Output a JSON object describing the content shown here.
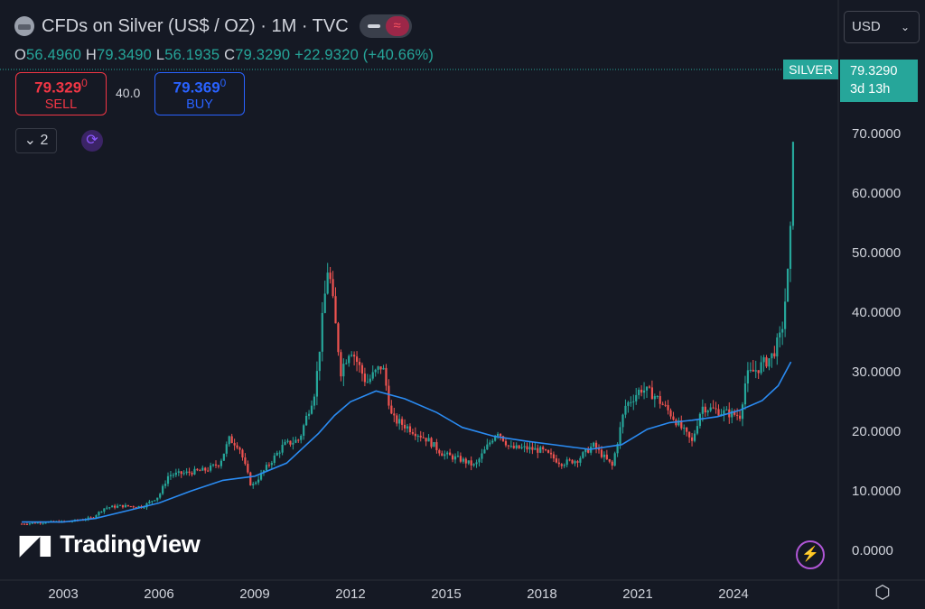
{
  "header": {
    "title": "CFDs on Silver (US$ / OZ) · 1M · TVC",
    "ohlc": {
      "o_label": "O",
      "o": "56.4960",
      "h_label": "H",
      "h": "79.3490",
      "l_label": "L",
      "l": "56.1935",
      "c_label": "C",
      "c": "79.3290",
      "change": "+22.9320 (+40.66%)"
    },
    "toggle_icon": "waves-icon",
    "symbol_icon": "silver-bar-icon"
  },
  "trade": {
    "sell_price": "79.329",
    "sell_price_small": "0",
    "sell_label": "SELL",
    "spread": "40.0",
    "buy_price": "79.369",
    "buy_price_small": "0",
    "buy_label": "BUY"
  },
  "indicators": {
    "collapse_label": "2",
    "collapse_icon": "chevron-down-icon",
    "sync_icon": "sync-icon"
  },
  "currency": {
    "value": "USD",
    "icon": "chevron-down-icon"
  },
  "price_tag": {
    "symbol": "SILVER",
    "price": "79.3290",
    "countdown": "3d 13h"
  },
  "logo_text": "TradingView",
  "colors": {
    "bg": "#151924",
    "up": "#26a69a",
    "down": "#ef5350",
    "ma": "#2a8bf2",
    "text": "#d1d4dc"
  },
  "chart_data": {
    "type": "candlestick",
    "ylim": [
      -2,
      82
    ],
    "y_ticks": [
      "0.0000",
      "10.0000",
      "20.0000",
      "30.0000",
      "40.0000",
      "50.0000",
      "60.0000",
      "70.0000"
    ],
    "x_ticks": [
      "2003",
      "2006",
      "2009",
      "2012",
      "2015",
      "2018",
      "2021",
      "2024"
    ],
    "series": [
      {
        "kind": "close_path",
        "points": [
          [
            2001.7,
            4.3
          ],
          [
            2002.5,
            4.6
          ],
          [
            2003.2,
            4.7
          ],
          [
            2003.9,
            5.3
          ],
          [
            2004.3,
            7.0
          ],
          [
            2004.8,
            7.3
          ],
          [
            2005.5,
            7.2
          ],
          [
            2006.0,
            9.0
          ],
          [
            2006.3,
            12.5
          ],
          [
            2006.8,
            12.8
          ],
          [
            2007.5,
            13.4
          ],
          [
            2007.9,
            14.5
          ],
          [
            2008.2,
            18.5
          ],
          [
            2008.5,
            17.5
          ],
          [
            2008.9,
            10.5
          ],
          [
            2009.4,
            14.0
          ],
          [
            2009.9,
            17.5
          ],
          [
            2010.4,
            18.5
          ],
          [
            2010.9,
            27.0
          ],
          [
            2011.3,
            48.0
          ],
          [
            2011.7,
            30.0
          ],
          [
            2012.0,
            34.0
          ],
          [
            2012.5,
            28.0
          ],
          [
            2013.0,
            31.0
          ],
          [
            2013.3,
            22.0
          ],
          [
            2013.8,
            20.5
          ],
          [
            2014.4,
            18.5
          ],
          [
            2014.9,
            16.0
          ],
          [
            2015.5,
            15.0
          ],
          [
            2015.9,
            14.0
          ],
          [
            2016.6,
            20.0
          ],
          [
            2017.0,
            17.0
          ],
          [
            2017.5,
            17.0
          ],
          [
            2018.0,
            16.6
          ],
          [
            2018.6,
            14.5
          ],
          [
            2019.1,
            15.0
          ],
          [
            2019.6,
            17.5
          ],
          [
            2020.2,
            14.0
          ],
          [
            2020.6,
            24.0
          ],
          [
            2021.1,
            27.0
          ],
          [
            2021.5,
            26.0
          ],
          [
            2022.0,
            23.0
          ],
          [
            2022.7,
            18.0
          ],
          [
            2023.0,
            24.0
          ],
          [
            2023.7,
            23.0
          ],
          [
            2024.2,
            22.5
          ],
          [
            2024.4,
            29.0
          ],
          [
            2024.9,
            31.0
          ],
          [
            2025.2,
            32.5
          ],
          [
            2025.5,
            36.0
          ],
          [
            2025.7,
            46.0
          ],
          [
            2025.83,
            56.5
          ],
          [
            2025.9,
            79.3
          ]
        ],
        "high": 79.349,
        "low_all": 4.2
      },
      {
        "kind": "moving_average",
        "points": [
          [
            2001.7,
            4.6
          ],
          [
            2003.0,
            4.6
          ],
          [
            2004.0,
            5.2
          ],
          [
            2005.0,
            6.5
          ],
          [
            2006.0,
            7.8
          ],
          [
            2007.0,
            9.8
          ],
          [
            2008.0,
            11.6
          ],
          [
            2009.0,
            12.3
          ],
          [
            2010.0,
            14.5
          ],
          [
            2011.0,
            19.5
          ],
          [
            2011.5,
            22.5
          ],
          [
            2012.0,
            24.8
          ],
          [
            2012.8,
            26.6
          ],
          [
            2013.7,
            25.3
          ],
          [
            2014.7,
            23.0
          ],
          [
            2015.5,
            20.5
          ],
          [
            2016.5,
            19.0
          ],
          [
            2017.5,
            18.2
          ],
          [
            2018.5,
            17.5
          ],
          [
            2019.5,
            16.8
          ],
          [
            2020.5,
            17.6
          ],
          [
            2021.3,
            20.2
          ],
          [
            2022.0,
            21.3
          ],
          [
            2022.7,
            21.7
          ],
          [
            2023.5,
            22.3
          ],
          [
            2024.2,
            23.4
          ],
          [
            2024.9,
            25.0
          ],
          [
            2025.4,
            27.5
          ],
          [
            2025.8,
            31.5
          ]
        ]
      }
    ]
  }
}
